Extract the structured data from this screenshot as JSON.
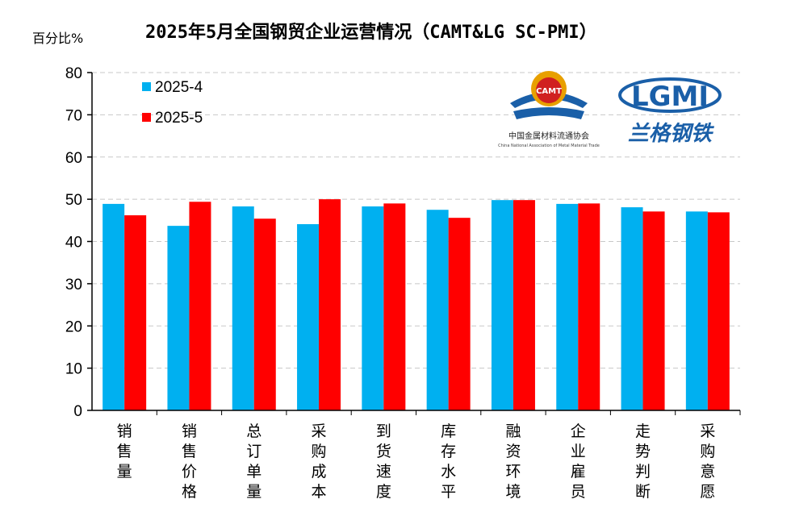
{
  "chart_data": {
    "type": "bar",
    "title": "2025年5月全国钢贸企业运营情况（CAMT&LG SC-PMI）",
    "ylabel": "百分比%",
    "xlabel": "",
    "ylim": [
      0,
      80
    ],
    "yticks": [
      0,
      10,
      20,
      30,
      40,
      50,
      60,
      70,
      80
    ],
    "grid": true,
    "legend_position": "top-left",
    "categories": [
      "销售量",
      "销售价格",
      "总订单量",
      "采购成本",
      "到货速度",
      "库存水平",
      "融资环境",
      "企业雇员",
      "走势判断",
      "采购意愿"
    ],
    "series": [
      {
        "name": "2025-4",
        "color": "#00B0F0",
        "values": [
          48.9,
          43.7,
          48.3,
          44.1,
          48.3,
          47.5,
          49.8,
          48.9,
          48.1,
          47.1
        ]
      },
      {
        "name": "2025-5",
        "color": "#FF0000",
        "values": [
          46.2,
          49.4,
          45.4,
          50.0,
          49.0,
          45.6,
          49.8,
          49.0,
          47.1,
          46.9
        ]
      }
    ]
  },
  "logos": {
    "camt": {
      "mark": "CAMT",
      "name_cn": "中国金属材料流通协会",
      "name_en": "China National Association of Metal Material Trade"
    },
    "lgmi": {
      "mark": "LGMI",
      "name_cn": "兰格钢铁"
    }
  }
}
